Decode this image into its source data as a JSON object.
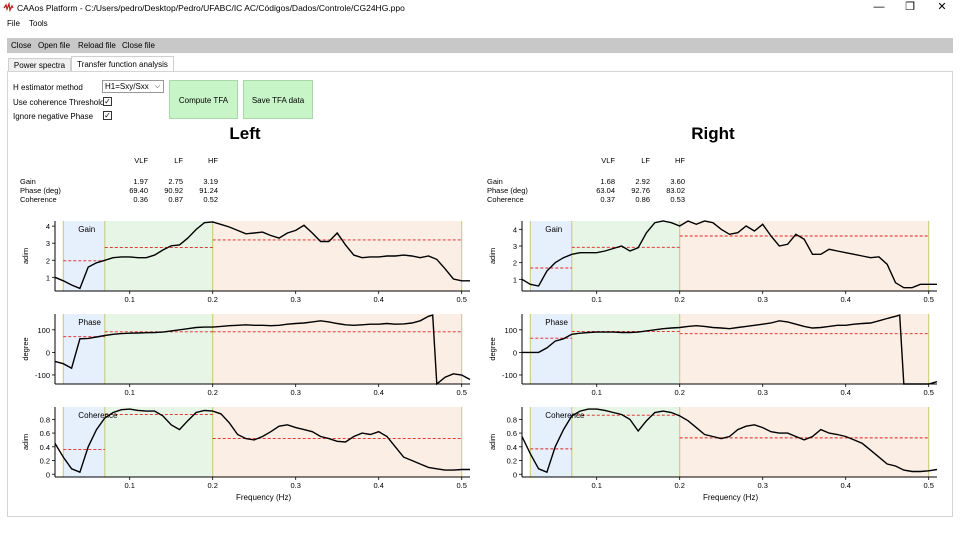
{
  "window": {
    "title": "CAAos Platform - C:/Users/pedro/Desktop/Pedro/UFABC/IC AC/Códigos/Dados/Controle/CG24HG.ppo",
    "controls": {
      "minimize": "—",
      "restore": "❐",
      "close": "✕"
    }
  },
  "menu": {
    "file": "File",
    "tools": "Tools"
  },
  "toolbar": {
    "close": "Close",
    "open_file": "Open file",
    "reload_file": "Reload file",
    "close_file": "Close file"
  },
  "tabs": {
    "power_spectra": "Power spectra",
    "tfa": "Transfer function analysis"
  },
  "controls": {
    "estimator_label": "H estimator method",
    "estimator_value": "H1=Sxy/Sxx",
    "coherence_label": "Use coherence Threshold",
    "coherence_checked": "✓",
    "negphase_label": "Ignore negative Phase",
    "negphase_checked": "✓",
    "compute_button": "Compute TFA",
    "save_button": "Save TFA data"
  },
  "colors": {
    "vlf_band": "#e6effc",
    "lf_band": "#e7f5e7",
    "hf_band": "#fbeee4",
    "curve": "#000000",
    "band_mean": "#e02020",
    "button_bg": "#c8f5c8"
  },
  "stats_header": {
    "vlf": "VLF",
    "lf": "LF",
    "hf": "HF",
    "gain": "Gain",
    "phase": "Phase (deg)",
    "coherence": "Coherence"
  },
  "left": {
    "title": "Left",
    "stats": {
      "gain": [
        "1.97",
        "2.75",
        "3.19"
      ],
      "phase": [
        "69.40",
        "90.92",
        "91.24"
      ],
      "coherence": [
        "0.36",
        "0.87",
        "0.52"
      ]
    }
  },
  "right": {
    "title": "Right",
    "stats": {
      "gain": [
        "1.68",
        "2.92",
        "3.60"
      ],
      "phase": [
        "63.04",
        "92.76",
        "83.02"
      ],
      "coherence": [
        "0.37",
        "0.86",
        "0.53"
      ]
    }
  },
  "axis_labels": {
    "gain_y": "adim",
    "phase_y": "degree",
    "coh_y": "adim",
    "x": "Frequency (Hz)"
  },
  "plot_titles": {
    "gain": "Gain",
    "phase": "Phase",
    "coherence": "Coherence"
  },
  "chart_data": [
    {
      "type": "line",
      "title": "Gain",
      "panel": "left",
      "ylabel": "adim",
      "xlim": [
        0.01,
        0.51
      ],
      "ylim": [
        0.2,
        4.3
      ],
      "xticks": [
        0.1,
        0.2,
        0.3,
        0.4,
        0.5
      ],
      "yticks": [
        1,
        2,
        3,
        4
      ],
      "bands": [
        0.02,
        0.07,
        0.2,
        0.5
      ],
      "band_means": [
        1.97,
        2.75,
        3.19
      ],
      "x": [
        0.01,
        0.02,
        0.03,
        0.04,
        0.05,
        0.06,
        0.07,
        0.08,
        0.09,
        0.1,
        0.11,
        0.12,
        0.13,
        0.14,
        0.15,
        0.16,
        0.17,
        0.18,
        0.19,
        0.2,
        0.21,
        0.22,
        0.23,
        0.24,
        0.25,
        0.26,
        0.27,
        0.28,
        0.29,
        0.3,
        0.31,
        0.32,
        0.33,
        0.34,
        0.35,
        0.36,
        0.37,
        0.38,
        0.39,
        0.4,
        0.41,
        0.42,
        0.43,
        0.44,
        0.45,
        0.46,
        0.47,
        0.48,
        0.49,
        0.5,
        0.51
      ],
      "values": [
        1.0,
        0.8,
        0.55,
        0.35,
        1.6,
        1.85,
        2.0,
        2.15,
        2.2,
        2.2,
        2.15,
        2.15,
        2.3,
        2.6,
        2.85,
        2.9,
        3.3,
        3.8,
        4.2,
        4.25,
        4.1,
        3.95,
        3.75,
        3.55,
        3.6,
        3.65,
        3.45,
        3.3,
        3.6,
        3.75,
        4.05,
        3.6,
        3.1,
        3.1,
        3.6,
        2.9,
        2.3,
        2.15,
        2.2,
        2.2,
        2.25,
        2.25,
        2.3,
        2.25,
        2.15,
        2.25,
        2.05,
        1.5,
        0.9,
        0.8,
        0.8
      ]
    },
    {
      "type": "line",
      "title": "Phase",
      "panel": "left",
      "ylabel": "degree",
      "xlim": [
        0.01,
        0.51
      ],
      "ylim": [
        -140,
        170
      ],
      "xticks": [
        0.1,
        0.2,
        0.3,
        0.4,
        0.5
      ],
      "yticks": [
        -100,
        0,
        100
      ],
      "bands": [
        0.02,
        0.07,
        0.2,
        0.5
      ],
      "band_means": [
        69.4,
        90.92,
        91.24
      ],
      "x": [
        0.01,
        0.02,
        0.03,
        0.04,
        0.05,
        0.06,
        0.07,
        0.08,
        0.09,
        0.1,
        0.11,
        0.12,
        0.13,
        0.14,
        0.15,
        0.16,
        0.17,
        0.18,
        0.19,
        0.2,
        0.21,
        0.22,
        0.23,
        0.24,
        0.25,
        0.26,
        0.27,
        0.28,
        0.29,
        0.3,
        0.31,
        0.32,
        0.33,
        0.34,
        0.35,
        0.36,
        0.37,
        0.38,
        0.39,
        0.4,
        0.41,
        0.42,
        0.43,
        0.44,
        0.45,
        0.46,
        0.465,
        0.47,
        0.48,
        0.49,
        0.5,
        0.51
      ],
      "values": [
        -40,
        -50,
        -70,
        60,
        62,
        68,
        75,
        80,
        83,
        85,
        86,
        87,
        88,
        90,
        95,
        100,
        105,
        110,
        112,
        112,
        115,
        118,
        120,
        122,
        120,
        120,
        118,
        120,
        125,
        128,
        130,
        135,
        140,
        135,
        128,
        122,
        120,
        122,
        125,
        125,
        128,
        125,
        126,
        130,
        140,
        160,
        165,
        -140,
        -110,
        -95,
        -100,
        -120
      ]
    },
    {
      "type": "line",
      "title": "Coherence",
      "panel": "left",
      "ylabel": "adim",
      "xlim": [
        0.01,
        0.51
      ],
      "ylim": [
        -0.04,
        0.98
      ],
      "xticks": [
        0.1,
        0.2,
        0.3,
        0.4,
        0.5
      ],
      "yticks": [
        0,
        0.2,
        0.4,
        0.6,
        0.8
      ],
      "bands": [
        0.02,
        0.07,
        0.2,
        0.5
      ],
      "band_means": [
        0.36,
        0.87,
        0.52
      ],
      "x": [
        0.01,
        0.02,
        0.03,
        0.04,
        0.05,
        0.06,
        0.07,
        0.08,
        0.09,
        0.1,
        0.11,
        0.12,
        0.13,
        0.14,
        0.15,
        0.16,
        0.17,
        0.18,
        0.19,
        0.2,
        0.21,
        0.22,
        0.23,
        0.24,
        0.25,
        0.26,
        0.27,
        0.28,
        0.29,
        0.3,
        0.31,
        0.32,
        0.33,
        0.34,
        0.35,
        0.36,
        0.37,
        0.38,
        0.39,
        0.4,
        0.41,
        0.42,
        0.43,
        0.44,
        0.45,
        0.46,
        0.47,
        0.48,
        0.49,
        0.5,
        0.51
      ],
      "values": [
        0.45,
        0.25,
        0.08,
        0.03,
        0.4,
        0.65,
        0.82,
        0.9,
        0.94,
        0.95,
        0.93,
        0.92,
        0.92,
        0.85,
        0.72,
        0.65,
        0.78,
        0.9,
        0.93,
        0.92,
        0.88,
        0.75,
        0.58,
        0.52,
        0.5,
        0.55,
        0.62,
        0.7,
        0.72,
        0.68,
        0.65,
        0.62,
        0.55,
        0.52,
        0.48,
        0.47,
        0.55,
        0.6,
        0.58,
        0.62,
        0.55,
        0.4,
        0.25,
        0.2,
        0.15,
        0.1,
        0.08,
        0.06,
        0.06,
        0.07,
        0.07
      ]
    },
    {
      "type": "line",
      "title": "Gain",
      "panel": "right",
      "ylabel": "adim",
      "xlim": [
        0.01,
        0.51
      ],
      "ylim": [
        0.3,
        4.5
      ],
      "xticks": [
        0.1,
        0.2,
        0.3,
        0.4,
        0.5
      ],
      "yticks": [
        1,
        2,
        3,
        4
      ],
      "bands": [
        0.02,
        0.07,
        0.2,
        0.5
      ],
      "band_means": [
        1.68,
        2.92,
        3.6
      ],
      "x": [
        0.01,
        0.02,
        0.03,
        0.04,
        0.05,
        0.06,
        0.07,
        0.08,
        0.09,
        0.1,
        0.11,
        0.12,
        0.13,
        0.14,
        0.15,
        0.16,
        0.17,
        0.18,
        0.19,
        0.2,
        0.21,
        0.22,
        0.23,
        0.24,
        0.25,
        0.26,
        0.27,
        0.28,
        0.29,
        0.3,
        0.31,
        0.32,
        0.33,
        0.34,
        0.35,
        0.36,
        0.37,
        0.38,
        0.39,
        0.4,
        0.41,
        0.42,
        0.43,
        0.44,
        0.45,
        0.46,
        0.47,
        0.48,
        0.49,
        0.5,
        0.51
      ],
      "values": [
        1.0,
        0.7,
        0.6,
        1.5,
        2.0,
        2.3,
        2.5,
        2.6,
        2.6,
        2.6,
        2.7,
        2.85,
        3.0,
        2.7,
        2.9,
        3.8,
        4.4,
        4.5,
        4.4,
        4.2,
        4.5,
        4.3,
        4.6,
        4.4,
        4.0,
        3.7,
        3.8,
        4.2,
        3.9,
        4.3,
        3.6,
        3.0,
        3.1,
        3.7,
        3.4,
        2.5,
        2.5,
        2.8,
        2.7,
        2.6,
        2.5,
        2.4,
        2.3,
        2.35,
        1.9,
        0.8,
        0.5,
        0.5,
        0.7,
        0.7,
        0.7
      ]
    },
    {
      "type": "line",
      "title": "Phase",
      "panel": "right",
      "ylabel": "degree",
      "xlim": [
        0.01,
        0.51
      ],
      "ylim": [
        -140,
        170
      ],
      "xticks": [
        0.1,
        0.2,
        0.3,
        0.4,
        0.5
      ],
      "yticks": [
        -100,
        0,
        100
      ],
      "bands": [
        0.02,
        0.07,
        0.2,
        0.5
      ],
      "band_means": [
        63.04,
        92.76,
        83.02
      ],
      "x": [
        0.01,
        0.02,
        0.03,
        0.04,
        0.05,
        0.06,
        0.07,
        0.08,
        0.09,
        0.1,
        0.11,
        0.12,
        0.13,
        0.14,
        0.15,
        0.16,
        0.17,
        0.18,
        0.19,
        0.2,
        0.21,
        0.22,
        0.23,
        0.24,
        0.25,
        0.26,
        0.27,
        0.28,
        0.29,
        0.3,
        0.31,
        0.32,
        0.33,
        0.34,
        0.35,
        0.36,
        0.37,
        0.38,
        0.39,
        0.4,
        0.41,
        0.42,
        0.43,
        0.44,
        0.45,
        0.46,
        0.465,
        0.47,
        0.48,
        0.49,
        0.5,
        0.51
      ],
      "values": [
        0,
        0,
        0,
        20,
        50,
        60,
        80,
        85,
        88,
        90,
        90,
        90,
        88,
        88,
        90,
        95,
        100,
        105,
        108,
        110,
        115,
        118,
        115,
        110,
        108,
        105,
        110,
        115,
        120,
        125,
        130,
        140,
        135,
        125,
        115,
        108,
        110,
        115,
        120,
        120,
        125,
        128,
        130,
        140,
        150,
        160,
        165,
        -150,
        -140,
        -145,
        -145,
        -130
      ]
    },
    {
      "type": "line",
      "title": "Coherence",
      "panel": "right",
      "ylabel": "adim",
      "xlim": [
        0.01,
        0.51
      ],
      "ylim": [
        -0.04,
        0.98
      ],
      "xticks": [
        0.1,
        0.2,
        0.3,
        0.4,
        0.5
      ],
      "yticks": [
        0,
        0.2,
        0.4,
        0.6,
        0.8
      ],
      "bands": [
        0.02,
        0.07,
        0.2,
        0.5
      ],
      "band_means": [
        0.37,
        0.86,
        0.53
      ],
      "x": [
        0.01,
        0.02,
        0.03,
        0.04,
        0.05,
        0.06,
        0.07,
        0.08,
        0.09,
        0.1,
        0.11,
        0.12,
        0.13,
        0.14,
        0.15,
        0.16,
        0.17,
        0.18,
        0.19,
        0.2,
        0.21,
        0.22,
        0.23,
        0.24,
        0.25,
        0.26,
        0.27,
        0.28,
        0.29,
        0.3,
        0.31,
        0.32,
        0.33,
        0.34,
        0.35,
        0.36,
        0.37,
        0.38,
        0.39,
        0.4,
        0.41,
        0.42,
        0.43,
        0.44,
        0.45,
        0.46,
        0.47,
        0.48,
        0.49,
        0.5,
        0.51
      ],
      "values": [
        0.55,
        0.3,
        0.08,
        0.03,
        0.4,
        0.65,
        0.85,
        0.92,
        0.95,
        0.95,
        0.93,
        0.9,
        0.87,
        0.8,
        0.63,
        0.78,
        0.9,
        0.92,
        0.9,
        0.85,
        0.78,
        0.68,
        0.58,
        0.55,
        0.52,
        0.55,
        0.65,
        0.7,
        0.72,
        0.68,
        0.62,
        0.6,
        0.6,
        0.55,
        0.5,
        0.55,
        0.65,
        0.6,
        0.58,
        0.55,
        0.5,
        0.45,
        0.35,
        0.25,
        0.15,
        0.12,
        0.06,
        0.04,
        0.04,
        0.05,
        0.07
      ]
    }
  ]
}
